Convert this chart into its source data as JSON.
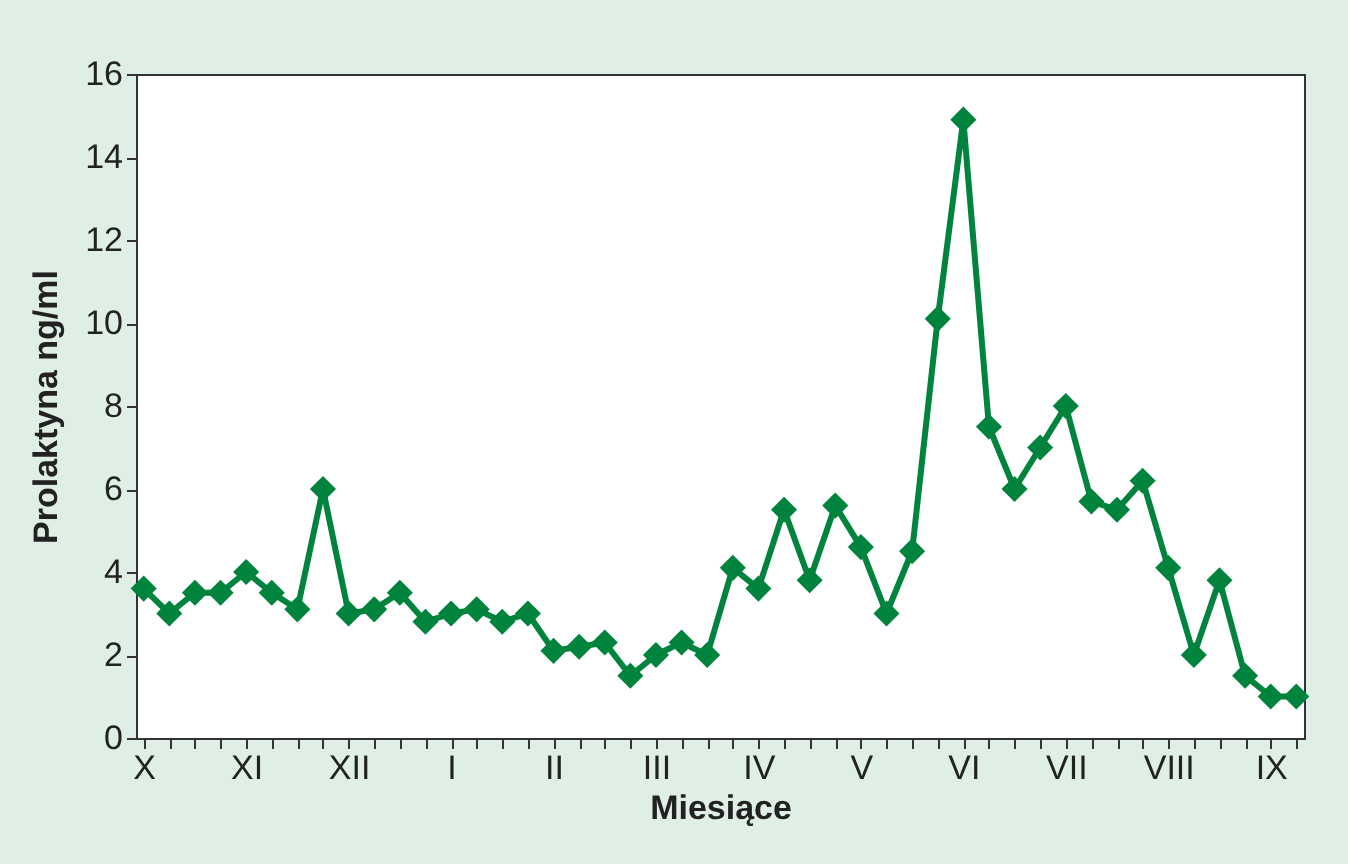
{
  "chart_data": {
    "type": "line",
    "xlabel": "Miesiące",
    "ylabel": "Prolaktyna ng/ml",
    "categories": [
      "X",
      null,
      null,
      null,
      "XI",
      null,
      null,
      null,
      "XII",
      null,
      null,
      null,
      "I",
      null,
      null,
      null,
      "II",
      null,
      null,
      null,
      "III",
      null,
      null,
      null,
      "IV",
      null,
      null,
      null,
      "V",
      null,
      null,
      null,
      "VI",
      null,
      null,
      null,
      "VII",
      null,
      null,
      null,
      "VIII",
      null,
      null,
      null,
      "IX",
      null
    ],
    "series": [
      {
        "color": "#00843d",
        "values": [
          3.6,
          3.0,
          3.5,
          3.5,
          4.0,
          3.5,
          3.1,
          6.0,
          3.0,
          3.1,
          3.5,
          2.8,
          3.0,
          3.1,
          2.8,
          3.0,
          2.1,
          2.2,
          2.3,
          1.5,
          2.0,
          2.3,
          2.0,
          4.1,
          3.6,
          5.5,
          3.8,
          5.6,
          4.6,
          3.0,
          4.5,
          10.1,
          14.9,
          7.5,
          6.0,
          7.0,
          8.0,
          5.7,
          5.5,
          6.2,
          4.1,
          2.0,
          3.8,
          1.5,
          1.0,
          1.0
        ]
      }
    ],
    "ylim": [
      0,
      16
    ],
    "yticks": [
      0,
      2,
      4,
      6,
      8,
      10,
      12,
      14,
      16
    ],
    "grid": false,
    "marker": "diamond",
    "line_style": "solid"
  }
}
